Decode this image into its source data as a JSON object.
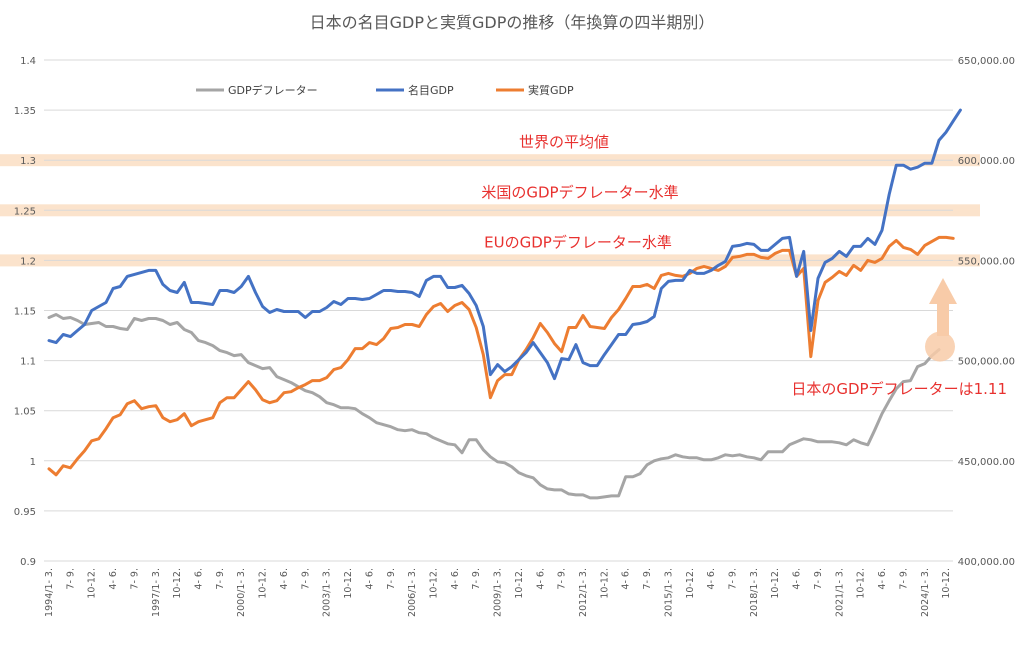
{
  "chart_data": {
    "type": "line",
    "title": "日本の名目GDPと実質GDPの推移（年換算の四半期別）",
    "y_left": {
      "ylim": [
        0.9,
        1.4
      ],
      "ticks": [
        "1.4",
        "1.35",
        "1.3",
        "1.25",
        "1.2",
        "1.15",
        "1.1",
        "1.05",
        "1",
        "0.95",
        "0.9"
      ]
    },
    "y_right": {
      "ylim": [
        400000,
        650000
      ],
      "ticks": [
        "650,000.00",
        "600,000.00",
        "550,000.00",
        "500,000.00",
        "450,000.00",
        "400,000.00"
      ]
    },
    "x_start_year": 1994,
    "x_tick_labels": [
      "1994/1- 3.",
      "7- 9.",
      "10-12.",
      "4- 6.",
      "7- 9.",
      "1997/1- 3.",
      "10-12.",
      "4- 6.",
      "7- 9.",
      "2000/1- 3.",
      "10-12.",
      "4- 6.",
      "7- 9.",
      "2003/1- 3.",
      "10-12.",
      "4- 6.",
      "7- 9.",
      "2006/1- 3.",
      "10-12.",
      "4- 6.",
      "7- 9.",
      "2009/1- 3.",
      "10-12.",
      "4- 6.",
      "7- 9.",
      "2012/1- 3.",
      "10-12.",
      "4- 6.",
      "7- 9.",
      "2015/1- 3.",
      "10-12.",
      "4- 6.",
      "7- 9.",
      "2018/1- 3.",
      "10-12.",
      "4- 6.",
      "7- 9.",
      "2021/1- 3.",
      "10-12.",
      "4- 6.",
      "7- 9.",
      "2024/1- 3.",
      "10-12."
    ],
    "grid": true,
    "legend_position": "top-left",
    "series": [
      {
        "name": "GDPデフレーター",
        "axis": "left",
        "color": "#a5a5a5",
        "values": [
          1.143,
          1.146,
          1.142,
          1.143,
          1.14,
          1.136,
          1.137,
          1.138,
          1.134,
          1.134,
          1.132,
          1.131,
          1.142,
          1.14,
          1.142,
          1.142,
          1.14,
          1.136,
          1.138,
          1.131,
          1.128,
          1.12,
          1.118,
          1.115,
          1.11,
          1.108,
          1.105,
          1.106,
          1.098,
          1.095,
          1.092,
          1.093,
          1.084,
          1.081,
          1.078,
          1.074,
          1.07,
          1.068,
          1.064,
          1.058,
          1.056,
          1.053,
          1.053,
          1.052,
          1.047,
          1.043,
          1.038,
          1.036,
          1.034,
          1.031,
          1.03,
          1.031,
          1.028,
          1.027,
          1.023,
          1.02,
          1.017,
          1.016,
          1.008,
          1.021,
          1.021,
          1.011,
          1.004,
          0.999,
          0.998,
          0.994,
          0.988,
          0.985,
          0.983,
          0.976,
          0.972,
          0.971,
          0.971,
          0.967,
          0.966,
          0.966,
          0.963,
          0.963,
          0.964,
          0.965,
          0.965,
          0.984,
          0.984,
          0.987,
          0.996,
          1.0,
          1.002,
          1.003,
          1.006,
          1.004,
          1.003,
          1.003,
          1.001,
          1.001,
          1.003,
          1.006,
          1.005,
          1.006,
          1.004,
          1.003,
          1.001,
          1.009,
          1.009,
          1.009,
          1.016,
          1.019,
          1.022,
          1.021,
          1.019,
          1.019,
          1.019,
          1.018,
          1.016,
          1.021,
          1.018,
          1.016,
          1.031,
          1.047,
          1.06,
          1.072,
          1.079,
          1.08,
          1.094,
          1.097,
          1.105,
          1.111
        ]
      },
      {
        "name": "名目GDP",
        "axis": "right",
        "color": "#4472c4",
        "values": [
          510000,
          509000,
          513000,
          512000,
          515000,
          518000,
          525000,
          527000,
          529000,
          536000,
          537000,
          542000,
          543000,
          544000,
          545000,
          545000,
          538000,
          535000,
          534000,
          539000,
          529000,
          529000,
          528500,
          528000,
          535000,
          535000,
          534000,
          537000,
          542000,
          534000,
          527000,
          524000,
          525500,
          524500,
          524500,
          524500,
          521500,
          524500,
          524500,
          526500,
          529500,
          528000,
          531000,
          531000,
          530500,
          531000,
          533000,
          535000,
          535000,
          534500,
          534500,
          534000,
          532000,
          540000,
          542000,
          542000,
          536500,
          536500,
          537500,
          533500,
          527500,
          517000,
          493000,
          498000,
          494500,
          497000,
          500500,
          504000,
          509000,
          504000,
          499000,
          491000,
          501000,
          500500,
          508000,
          499000,
          497500,
          497500,
          503000,
          508000,
          513000,
          513000,
          518000,
          518500,
          519500,
          522000,
          536000,
          539500,
          540000,
          540000,
          545000,
          543500,
          543500,
          545000,
          547500,
          549500,
          557000,
          557500,
          558500,
          558000,
          555000,
          555000,
          558000,
          561000,
          561500,
          542000,
          554500,
          515000,
          541000,
          549000,
          551000,
          554500,
          552000,
          557000,
          557000,
          561000,
          558000,
          565000,
          583000,
          597500,
          597500,
          595500,
          596500,
          598500,
          598500,
          610000,
          614000,
          619500,
          625000
        ]
      },
      {
        "name": "実質GDP",
        "axis": "right",
        "color": "#ed7d31",
        "values": [
          446000,
          443000,
          447500,
          446500,
          451000,
          455000,
          460000,
          461000,
          466000,
          471500,
          473000,
          478500,
          480000,
          476000,
          477000,
          477500,
          471500,
          469500,
          470500,
          473500,
          467500,
          469500,
          470500,
          471500,
          479000,
          481500,
          481500,
          485500,
          489500,
          485500,
          480500,
          479000,
          480000,
          484000,
          484500,
          486500,
          488000,
          490000,
          490000,
          491500,
          495500,
          496500,
          500500,
          506000,
          506000,
          509000,
          508000,
          511000,
          516000,
          516500,
          518000,
          518000,
          517000,
          523000,
          527000,
          528500,
          524500,
          527500,
          529000,
          525500,
          516500,
          503000,
          481500,
          490000,
          493000,
          493000,
          500500,
          505500,
          511500,
          518500,
          514000,
          508500,
          504500,
          516500,
          516500,
          522500,
          517000,
          516500,
          516000,
          521500,
          525500,
          531000,
          537000,
          537000,
          538000,
          536000,
          542500,
          543500,
          542500,
          542000,
          543500,
          546000,
          547000,
          546000,
          545000,
          547000,
          551500,
          552000,
          553000,
          553000,
          551500,
          551000,
          553500,
          555000,
          555000,
          542000,
          546000,
          502000,
          530000,
          539000,
          541500,
          544500,
          542500,
          547500,
          545000,
          550000,
          549000,
          551000,
          557000,
          560000,
          556500,
          555500,
          553000,
          557500,
          559500,
          561500,
          561500,
          561000
        ]
      }
    ],
    "reference_bands": [
      {
        "value": 1.3,
        "label": "世界の平均値"
      },
      {
        "value": 1.25,
        "label": "米国のGDPデフレーター水準"
      },
      {
        "value": 1.2,
        "label": "EUのGDPデフレーター水準"
      }
    ],
    "annotation": {
      "label": "日本のGDPデフレーターは1.11"
    },
    "colors": {
      "band": "#fbe3cc",
      "annotation_text": "#e8312f",
      "arrow": "#f8cba8"
    }
  }
}
